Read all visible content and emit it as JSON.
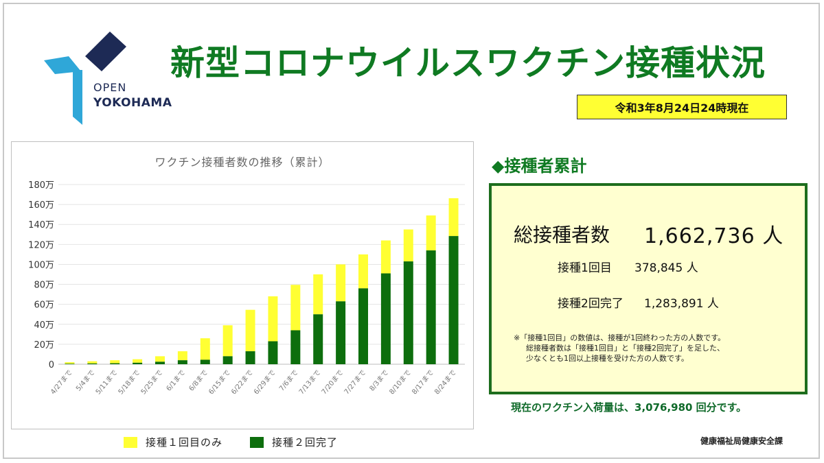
{
  "header": {
    "logo_line1": "OPEN",
    "logo_line2": "YOKOHAMA",
    "title": "新型コロナウイルスワクチン接種状況",
    "as_of": "令和3年8月24日24時現在"
  },
  "summary": {
    "heading": "◆接種者累計",
    "total_label": "総接種者数",
    "total_value": "1,662,736 人",
    "dose1_label": "接種1回目",
    "dose1_value": "378,845 人",
    "dose2_label": "接種2回完了",
    "dose2_value": "1,283,891 人",
    "notes": [
      "※「接種1回目」の数値は、接種が1回終わった方の人数です。",
      "総接種者数は「接種1回目」と「接種2回完了」を足した、",
      "少なくとも1回以上接種を受けた方の人数です。"
    ],
    "supply": "現在のワクチン入荷量は、3,076,980 回分です。"
  },
  "credit": "健康福祉局健康安全課",
  "colors": {
    "dose1": "#ffff33",
    "dose2": "#0d6e0d",
    "title_green": "#0f7a22",
    "logo_blue": "#1d2a55",
    "logo_cyan": "#2fa7d8"
  },
  "chart_data": {
    "type": "bar",
    "stacked": true,
    "title": "ワクチン接種者数の推移（累計）",
    "categories": [
      "4/27まで",
      "5/4まで",
      "5/11まで",
      "5/18まで",
      "5/25まで",
      "6/1まで",
      "6/8まで",
      "6/15まで",
      "6/22まで",
      "6/29まで",
      "7/6まで",
      "7/13まで",
      "7/20まで",
      "7/27まで",
      "8/3まで",
      "8/10まで",
      "8/17まで",
      "8/24まで"
    ],
    "y_ticks": [
      "0",
      "20万",
      "40万",
      "60万",
      "80万",
      "100万",
      "120万",
      "140万",
      "160万",
      "180万"
    ],
    "ylim": [
      0,
      1800000
    ],
    "series": [
      {
        "name": "接種２回完了",
        "values": [
          5000,
          8000,
          10000,
          15000,
          25000,
          40000,
          45000,
          80000,
          130000,
          230000,
          340000,
          500000,
          630000,
          760000,
          910000,
          1030000,
          1140000,
          1283891
        ]
      },
      {
        "name": "接種１回目のみ",
        "values": [
          15000,
          22000,
          30000,
          35000,
          55000,
          90000,
          215000,
          310000,
          415000,
          450000,
          455000,
          400000,
          370000,
          340000,
          330000,
          320000,
          350000,
          378845
        ]
      }
    ],
    "legend_position": "bottom",
    "grid": true
  }
}
